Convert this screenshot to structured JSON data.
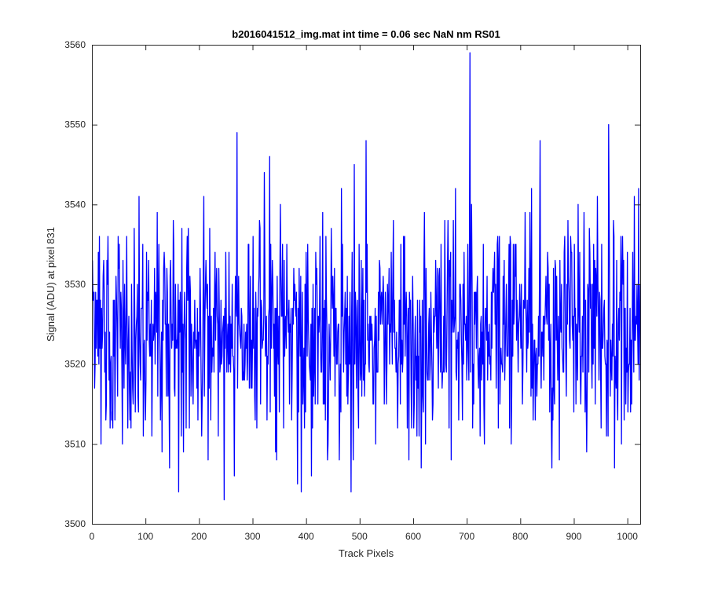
{
  "chart_data": {
    "type": "line",
    "title": "b2016041512_img.mat int time = 0.06 sec  NaN nm RS01",
    "xlabel": "Track Pixels",
    "ylabel": "Signal (ADU) at pixel 831",
    "xlim": [
      0,
      1024
    ],
    "ylim": [
      3500,
      3560
    ],
    "xticks": [
      0,
      100,
      200,
      300,
      400,
      500,
      600,
      700,
      800,
      900,
      1000
    ],
    "yticks": [
      3500,
      3510,
      3520,
      3530,
      3540,
      3550,
      3560
    ],
    "grid": false,
    "legend": false,
    "series": [
      {
        "color": "#0000ff",
        "noise_seed": 20160415,
        "sampled_pixels": [
          1,
          1024
        ],
        "sampled_range": [
          3503,
          3559
        ],
        "baseline_mean": 3524,
        "baseline_stddev": 6.5,
        "points": [
          [
            1,
            3533
          ],
          [
            5,
            3517
          ],
          [
            9,
            3528
          ],
          [
            13,
            3520
          ],
          [
            17,
            3510
          ],
          [
            22,
            3533
          ],
          [
            27,
            3515
          ],
          [
            30,
            3536
          ],
          [
            34,
            3512
          ],
          [
            45,
            3531
          ],
          [
            51,
            3535
          ],
          [
            57,
            3510
          ],
          [
            65,
            3536
          ],
          [
            72,
            3519
          ],
          [
            79,
            3537
          ],
          [
            88,
            3541
          ],
          [
            96,
            3511
          ],
          [
            103,
            3523
          ],
          [
            112,
            3511
          ],
          [
            125,
            3535
          ],
          [
            131,
            3509
          ],
          [
            141,
            3529
          ],
          [
            145,
            3507
          ],
          [
            153,
            3534
          ],
          [
            162,
            3504
          ],
          [
            168,
            3537
          ],
          [
            176,
            3512
          ],
          [
            180,
            3537
          ],
          [
            189,
            3515
          ],
          [
            201,
            3524
          ],
          [
            213,
            3533
          ],
          [
            217,
            3508
          ],
          [
            226,
            3521
          ],
          [
            237,
            3532
          ],
          [
            247,
            3503
          ],
          [
            262,
            3530
          ],
          [
            266,
            3506
          ],
          [
            271,
            3549
          ],
          [
            276,
            3524
          ],
          [
            292,
            3535
          ],
          [
            305,
            3513
          ],
          [
            313,
            3538
          ],
          [
            327,
            3513
          ],
          [
            332,
            3546
          ],
          [
            345,
            3508
          ],
          [
            353,
            3531
          ],
          [
            364,
            3535
          ],
          [
            369,
            3515
          ],
          [
            376,
            3525
          ],
          [
            384,
            3505
          ],
          [
            391,
            3504
          ],
          [
            400,
            3534
          ],
          [
            410,
            3506
          ],
          [
            422,
            3515
          ],
          [
            431,
            3539
          ],
          [
            441,
            3510
          ],
          [
            451,
            3528
          ],
          [
            462,
            3508
          ],
          [
            468,
            3535
          ],
          [
            474,
            3520
          ],
          [
            484,
            3504
          ],
          [
            490,
            3545
          ],
          [
            498,
            3512
          ],
          [
            512,
            3548
          ],
          [
            520,
            3523
          ],
          [
            530,
            3510
          ],
          [
            541,
            3529
          ],
          [
            550,
            3515
          ],
          [
            563,
            3538
          ],
          [
            571,
            3512
          ],
          [
            586,
            3526
          ],
          [
            592,
            3508
          ],
          [
            604,
            3526
          ],
          [
            611,
            3511
          ],
          [
            621,
            3539
          ],
          [
            635,
            3520
          ],
          [
            642,
            3533
          ],
          [
            656,
            3519
          ],
          [
            664,
            3532
          ],
          [
            671,
            3508
          ],
          [
            679,
            3542
          ],
          [
            694,
            3520
          ],
          [
            703,
            3522
          ],
          [
            706,
            3559
          ],
          [
            712,
            3520
          ],
          [
            724,
            3522
          ],
          [
            733,
            3510
          ],
          [
            742,
            3525
          ],
          [
            758,
            3536
          ],
          [
            764,
            3522
          ],
          [
            770,
            3533
          ],
          [
            780,
            3512
          ],
          [
            792,
            3535
          ],
          [
            805,
            3520
          ],
          [
            818,
            3539
          ],
          [
            832,
            3520
          ],
          [
            837,
            3548
          ],
          [
            845,
            3526
          ],
          [
            851,
            3534
          ],
          [
            864,
            3515
          ],
          [
            873,
            3508
          ],
          [
            883,
            3536
          ],
          [
            893,
            3522
          ],
          [
            908,
            3540
          ],
          [
            921,
            3514
          ],
          [
            929,
            3537
          ],
          [
            938,
            3522
          ],
          [
            952,
            3535
          ],
          [
            965,
            3550
          ],
          [
            972,
            3525
          ],
          [
            976,
            3507
          ],
          [
            987,
            3528
          ],
          [
            993,
            3533
          ],
          [
            1002,
            3519
          ],
          [
            1008,
            3515
          ],
          [
            1013,
            3541
          ],
          [
            1017,
            3525
          ],
          [
            1022,
            3518
          ],
          [
            1024,
            3530
          ]
        ]
      }
    ]
  }
}
